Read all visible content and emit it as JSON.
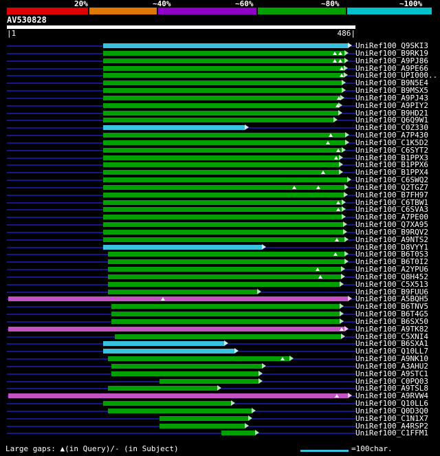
{
  "colors": {
    "background": "#000000",
    "text": "#ffffff",
    "query_line": "#16168c",
    "green": "#00a000",
    "cyan": "#38c2de",
    "magenta": "#c352c3",
    "green_arrow": "#b2e4b2",
    "cyan_arrow": "#c9eef7",
    "magenta_arrow": "#eec6ee"
  },
  "chart_data": {
    "type": "bar",
    "title": "AV530828",
    "query": {
      "name": "AV530828",
      "start_label": "|1",
      "end_label": "486|",
      "length": 486
    },
    "identity_scale": {
      "labels": [
        "20%",
        "~40%",
        "~60%",
        "~80%",
        "~100%"
      ],
      "segments": [
        {
          "name": "red-20",
          "color": "#dd0000",
          "start": 10,
          "end": 130
        },
        {
          "name": "orange-40",
          "color": "#dd7700",
          "start": 130,
          "end": 230
        },
        {
          "name": "purple-60",
          "color": "#8e00c8",
          "start": 230,
          "end": 375
        },
        {
          "name": "green-80",
          "color": "#00a000",
          "start": 375,
          "end": 505
        },
        {
          "name": "cyan-100",
          "color": "#00c2cc",
          "start": 505,
          "end": 630
        }
      ]
    },
    "alignments": [
      {
        "label": "UniRef100_Q9SKI3",
        "color": "cyan",
        "start": 150,
        "end": 512,
        "gaps": []
      },
      {
        "label": "UniRef100_B9RK19",
        "color": "green",
        "start": 150,
        "end": 507,
        "gaps": [
          487,
          495
        ]
      },
      {
        "label": "UniRef100_A9PJ86",
        "color": "green",
        "start": 150,
        "end": 507,
        "gaps": [
          487,
          495
        ]
      },
      {
        "label": "UniRef100_A9PE66",
        "color": "green",
        "start": 150,
        "end": 506,
        "gaps": [
          497
        ]
      },
      {
        "label": "UniRef100_UPI000..",
        "color": "green",
        "start": 150,
        "end": 506,
        "gaps": [
          497
        ]
      },
      {
        "label": "UniRef100_B9N5E4",
        "color": "green",
        "start": 150,
        "end": 503,
        "gaps": []
      },
      {
        "label": "UniRef100_B9MSX5",
        "color": "green",
        "start": 150,
        "end": 503,
        "gaps": []
      },
      {
        "label": "UniRef100_A9PJ43",
        "color": "green",
        "start": 150,
        "end": 501,
        "gaps": [
          493
        ]
      },
      {
        "label": "UniRef100_A9PIY2",
        "color": "green",
        "start": 150,
        "end": 498,
        "gaps": [
          491
        ]
      },
      {
        "label": "UniRef100_B9HD21",
        "color": "green",
        "start": 150,
        "end": 498,
        "gaps": []
      },
      {
        "label": "UniRef100_Q6Q9W1",
        "color": "green",
        "start": 150,
        "end": 491,
        "gaps": []
      },
      {
        "label": "UniRef100_C0Z330",
        "color": "cyan",
        "start": 150,
        "end": 362,
        "gaps": []
      },
      {
        "label": "UniRef100_A7P430",
        "color": "green",
        "start": 150,
        "end": 508,
        "gaps": [
          481
        ]
      },
      {
        "label": "UniRef100_C1K5D2",
        "color": "green",
        "start": 150,
        "end": 508,
        "gaps": [
          477
        ]
      },
      {
        "label": "UniRef100_C6SYT2",
        "color": "green",
        "start": 150,
        "end": 503,
        "gaps": [
          492
        ]
      },
      {
        "label": "UniRef100_B1PPX3",
        "color": "green",
        "start": 150,
        "end": 499,
        "gaps": [
          489
        ]
      },
      {
        "label": "UniRef100_B1PPX6",
        "color": "green",
        "start": 150,
        "end": 499,
        "gaps": []
      },
      {
        "label": "UniRef100_B1PPX4",
        "color": "green",
        "start": 150,
        "end": 499,
        "gaps": [
          470
        ]
      },
      {
        "label": "UniRef100_C6SWQ2",
        "color": "green",
        "start": 150,
        "end": 511,
        "gaps": []
      },
      {
        "label": "UniRef100_Q2TGZ7",
        "color": "green",
        "start": 150,
        "end": 507,
        "gaps": [
          428,
          463
        ]
      },
      {
        "label": "UniRef100_B7FH97",
        "color": "green",
        "start": 150,
        "end": 506,
        "gaps": []
      },
      {
        "label": "UniRef100_C6TBW1",
        "color": "green",
        "start": 150,
        "end": 503,
        "gaps": [
          492
        ]
      },
      {
        "label": "UniRef100_C6SVA3",
        "color": "green",
        "start": 150,
        "end": 503,
        "gaps": [
          492
        ]
      },
      {
        "label": "UniRef100_A7PE00",
        "color": "green",
        "start": 150,
        "end": 503,
        "gaps": []
      },
      {
        "label": "UniRef100_Q7XA95",
        "color": "green",
        "start": 150,
        "end": 505,
        "gaps": []
      },
      {
        "label": "UniRef100_B9RQV2",
        "color": "green",
        "start": 150,
        "end": 505,
        "gaps": []
      },
      {
        "label": "UniRef100_A9NTS2",
        "color": "green",
        "start": 150,
        "end": 507,
        "gaps": [
          490
        ]
      },
      {
        "label": "UniRef100_D8VYY1",
        "color": "cyan",
        "start": 150,
        "end": 387,
        "gaps": []
      },
      {
        "label": "UniRef100_B6T0S3",
        "color": "green",
        "start": 157,
        "end": 507,
        "gaps": [
          488
        ]
      },
      {
        "label": "UniRef100_B6T0I2",
        "color": "green",
        "start": 157,
        "end": 507,
        "gaps": []
      },
      {
        "label": "UniRef100_A2YPU6",
        "color": "green",
        "start": 157,
        "end": 502,
        "gaps": [
          462
        ]
      },
      {
        "label": "UniRef100_Q8H452",
        "color": "green",
        "start": 157,
        "end": 502,
        "gaps": [
          466
        ]
      },
      {
        "label": "UniRef100_C5X513",
        "color": "green",
        "start": 157,
        "end": 500,
        "gaps": []
      },
      {
        "label": "UniRef100_B9FUU6",
        "color": "green",
        "start": 157,
        "end": 380,
        "gaps": []
      },
      {
        "label": "UniRef100_A5BQH5",
        "color": "magenta",
        "start": 12,
        "end": 512,
        "gaps": [
          237
        ]
      },
      {
        "label": "UniRef100_B6TNV5",
        "color": "green",
        "start": 162,
        "end": 500,
        "gaps": []
      },
      {
        "label": "UniRef100_B6T4G5",
        "color": "green",
        "start": 162,
        "end": 500,
        "gaps": []
      },
      {
        "label": "UniRef100_B6SX50",
        "color": "green",
        "start": 162,
        "end": 500,
        "gaps": []
      },
      {
        "label": "UniRef100_A9TK82",
        "color": "magenta",
        "start": 12,
        "end": 507,
        "gaps": [
          497
        ]
      },
      {
        "label": "UniRef100_C5XNI4",
        "color": "green",
        "start": 167,
        "end": 502,
        "gaps": []
      },
      {
        "label": "UniRef100_B6SXA1",
        "color": "cyan",
        "start": 150,
        "end": 332,
        "gaps": []
      },
      {
        "label": "UniRef100_Q10LL7",
        "color": "cyan",
        "start": 150,
        "end": 347,
        "gaps": []
      },
      {
        "label": "UniRef100_A9NK10",
        "color": "green",
        "start": 157,
        "end": 427,
        "gaps": [
          411
        ]
      },
      {
        "label": "UniRef100_A3AHU2",
        "color": "green",
        "start": 162,
        "end": 387,
        "gaps": []
      },
      {
        "label": "UniRef100_A9STC1",
        "color": "green",
        "start": 162,
        "end": 382,
        "gaps": []
      },
      {
        "label": "UniRef100_C0PQ03",
        "color": "green",
        "start": 232,
        "end": 382,
        "gaps": []
      },
      {
        "label": "UniRef100_A9TSL8",
        "color": "green",
        "start": 157,
        "end": 322,
        "gaps": []
      },
      {
        "label": "UniRef100_A9RVW4",
        "color": "magenta",
        "start": 12,
        "end": 512,
        "gaps": [
          490
        ]
      },
      {
        "label": "UniRef100_Q10LL6",
        "color": "green",
        "start": 150,
        "end": 342,
        "gaps": []
      },
      {
        "label": "UniRef100_Q0D3Q0",
        "color": "green",
        "start": 157,
        "end": 372,
        "gaps": []
      },
      {
        "label": "UniRef100_C1N1X7",
        "color": "green",
        "start": 232,
        "end": 367,
        "gaps": []
      },
      {
        "label": "UniRef100_A4RSP2",
        "color": "green",
        "start": 232,
        "end": 362,
        "gaps": []
      },
      {
        "label": "UniRef100_C1FFM1",
        "color": "green",
        "start": 322,
        "end": 377,
        "gaps": []
      }
    ],
    "legend": {
      "large_gaps": "Large gaps: ▲(in Query)/- (in Subject)",
      "scale_text": "=100char."
    }
  }
}
